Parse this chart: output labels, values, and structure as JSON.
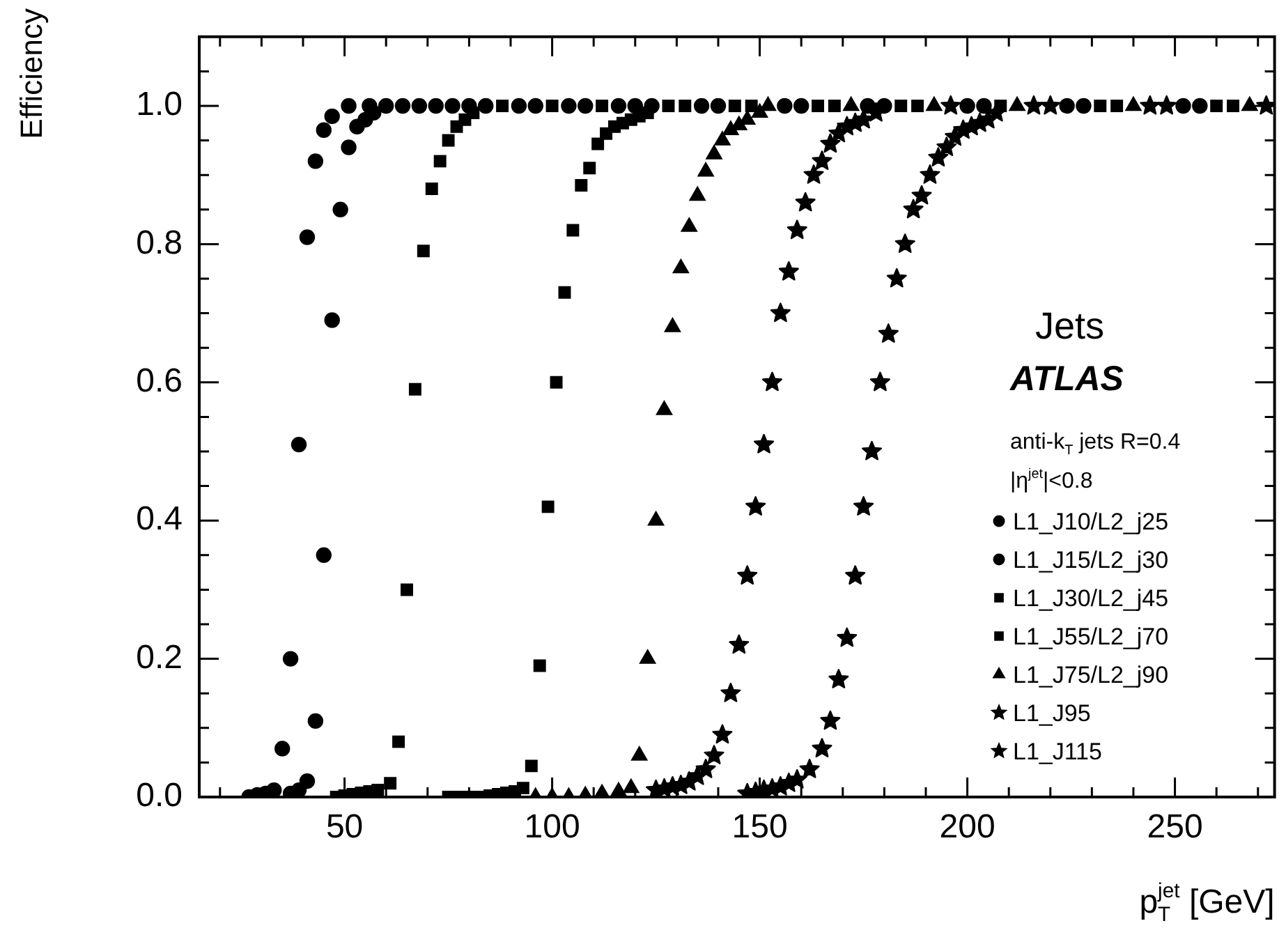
{
  "chart_data": {
    "type": "scatter",
    "xlabel": "p$_{T}$$^{jet}$ [GeV]",
    "ylabel": "Efficiency",
    "annotations": [
      "Jets",
      "ATLAS",
      "anti-k$_{T}$ jets R=0.4",
      "|η$^{jet}$|<0.8"
    ],
    "xlim": [
      15,
      274
    ],
    "ylim": [
      0,
      1.1
    ],
    "xticks": [
      {
        "value": 20,
        "label": null
      },
      {
        "value": 30,
        "label": null
      },
      {
        "value": 40,
        "label": null
      },
      50,
      {
        "value": 60,
        "label": null
      },
      {
        "value": 70,
        "label": null
      },
      {
        "value": 80,
        "label": null
      },
      {
        "value": 90,
        "label": null
      },
      100,
      {
        "value": 110,
        "label": null
      },
      {
        "value": 120,
        "label": null
      },
      {
        "value": 130,
        "label": null
      },
      {
        "value": 140,
        "label": null
      },
      150,
      {
        "value": 160,
        "label": null
      },
      {
        "value": 170,
        "label": null
      },
      {
        "value": 180,
        "label": null
      },
      {
        "value": 190,
        "label": null
      },
      200,
      {
        "value": 210,
        "label": null
      },
      {
        "value": 220,
        "label": null
      },
      {
        "value": 230,
        "label": null
      },
      {
        "value": 240,
        "label": null
      },
      250,
      {
        "value": 260,
        "label": null
      },
      {
        "value": 270,
        "label": null
      }
    ],
    "yticks": [
      {
        "value": 0,
        "label": "0.0"
      },
      {
        "value": 0.05,
        "label": null
      },
      {
        "value": 0.1,
        "label": null
      },
      {
        "value": 0.15,
        "label": null
      },
      {
        "value": 0.2,
        "label": "0.2"
      },
      {
        "value": 0.25,
        "label": null
      },
      {
        "value": 0.3,
        "label": null
      },
      {
        "value": 0.35,
        "label": null
      },
      {
        "value": 0.4,
        "label": "0.4"
      },
      {
        "value": 0.45,
        "label": null
      },
      {
        "value": 0.5,
        "label": null
      },
      {
        "value": 0.55,
        "label": null
      },
      {
        "value": 0.6,
        "label": "0.6"
      },
      {
        "value": 0.65,
        "label": null
      },
      {
        "value": 0.7,
        "label": null
      },
      {
        "value": 0.75,
        "label": null
      },
      {
        "value": 0.8,
        "label": "0.8"
      },
      {
        "value": 0.85,
        "label": null
      },
      {
        "value": 0.9,
        "label": null
      },
      {
        "value": 0.95,
        "label": null
      },
      {
        "value": 1,
        "label": "1.0"
      },
      {
        "value": 1.05,
        "label": null
      }
    ],
    "legend": "right",
    "series": [
      {
        "name": "L1_J10/L2_j25",
        "color": "#000000",
        "marker": "circle",
        "x": [
          27,
          29,
          31,
          33,
          35,
          37,
          39,
          41,
          43,
          45,
          47,
          51,
          56,
          64,
          72,
          80,
          92,
          104,
          116,
          136,
          156,
          176,
          200,
          224,
          252
        ],
        "values": [
          0,
          0.003,
          0.005,
          0.01,
          0.07,
          0.2,
          0.51,
          0.81,
          0.92,
          0.965,
          0.985,
          1,
          1,
          1,
          1,
          1,
          1,
          1,
          1,
          1,
          1,
          1,
          1,
          1,
          1
        ]
      },
      {
        "name": "L1_J15/L2_j30",
        "color": "#000000",
        "marker": "circle",
        "x": [
          37,
          39,
          41,
          43,
          45,
          47,
          49,
          51,
          53,
          55,
          57,
          60,
          68,
          76,
          84,
          96,
          108,
          120,
          124,
          140,
          160,
          180,
          204,
          228,
          256
        ],
        "values": [
          0.005,
          0.01,
          0.023,
          0.11,
          0.35,
          0.69,
          0.85,
          0.94,
          0.97,
          0.98,
          0.99,
          1,
          1,
          1,
          1,
          1,
          1,
          1,
          1,
          1,
          1,
          1,
          1,
          1,
          1
        ]
      },
      {
        "name": "L1_J30/L2_j45",
        "color": "#000000",
        "marker": "square",
        "x": [
          48,
          50,
          52,
          54,
          56,
          58,
          61,
          63,
          65,
          67,
          69,
          71,
          73,
          75,
          77,
          79,
          81,
          88,
          100,
          112,
          128,
          144,
          164,
          184,
          208,
          232,
          260
        ],
        "values": [
          0,
          0.002,
          0.004,
          0.006,
          0.008,
          0.01,
          0.02,
          0.08,
          0.3,
          0.59,
          0.79,
          0.88,
          0.92,
          0.95,
          0.97,
          0.98,
          0.99,
          1,
          1,
          1,
          1,
          1,
          1,
          1,
          1,
          1,
          1
        ]
      },
      {
        "name": "L1_J55/L2_j70",
        "color": "#000000",
        "marker": "square",
        "x": [
          75,
          77,
          79,
          81,
          83,
          85,
          87,
          89,
          91,
          93,
          95,
          97,
          99,
          101,
          103,
          105,
          107,
          109,
          111,
          113,
          115,
          117,
          119,
          121,
          123,
          132,
          148,
          168,
          188,
          236,
          264
        ],
        "values": [
          0,
          0,
          0,
          0,
          0,
          0.002,
          0.004,
          0.006,
          0.008,
          0.013,
          0.045,
          0.19,
          0.42,
          0.6,
          0.73,
          0.82,
          0.885,
          0.91,
          0.945,
          0.96,
          0.97,
          0.975,
          0.98,
          0.985,
          0.99,
          1,
          1,
          1,
          1,
          1,
          1
        ]
      },
      {
        "name": "L1_J75/L2_j90",
        "color": "#000000",
        "marker": "triangle",
        "x": [
          96,
          100,
          104,
          108,
          112,
          116,
          119,
          121,
          123,
          125,
          127,
          129,
          131,
          133,
          135,
          137,
          139,
          141,
          143,
          145,
          147,
          150,
          152,
          172,
          192,
          212,
          240,
          268
        ],
        "values": [
          0,
          0,
          0,
          0.002,
          0.005,
          0.008,
          0.013,
          0.06,
          0.2,
          0.4,
          0.56,
          0.68,
          0.765,
          0.825,
          0.87,
          0.905,
          0.93,
          0.95,
          0.965,
          0.972,
          0.98,
          0.99,
          1,
          1,
          1,
          1,
          1,
          1
        ]
      },
      {
        "name": "L1_J95",
        "color": "#000000",
        "marker": "star",
        "x": [
          125,
          127,
          129,
          131,
          133,
          135,
          137,
          139,
          141,
          143,
          145,
          147,
          149,
          151,
          153,
          155,
          157,
          159,
          161,
          163,
          165,
          167,
          169,
          171,
          173,
          175,
          178,
          196,
          216,
          244,
          272
        ],
        "values": [
          0.01,
          0.012,
          0.015,
          0.017,
          0.022,
          0.03,
          0.04,
          0.06,
          0.09,
          0.15,
          0.22,
          0.32,
          0.42,
          0.51,
          0.6,
          0.7,
          0.76,
          0.82,
          0.86,
          0.9,
          0.92,
          0.945,
          0.96,
          0.97,
          0.975,
          0.98,
          0.99,
          1,
          1,
          1,
          1
        ]
      },
      {
        "name": "L1_J115",
        "color": "#000000",
        "marker": "star",
        "x": [
          147,
          149,
          151,
          153,
          155,
          157,
          159,
          162,
          165,
          167,
          169,
          171,
          173,
          175,
          177,
          179,
          181,
          183,
          185,
          187,
          189,
          191,
          193,
          195,
          197,
          199,
          201,
          203,
          205,
          207,
          220,
          248
        ],
        "values": [
          0.005,
          0.007,
          0.01,
          0.012,
          0.015,
          0.02,
          0.025,
          0.04,
          0.07,
          0.11,
          0.17,
          0.23,
          0.32,
          0.42,
          0.5,
          0.6,
          0.67,
          0.75,
          0.8,
          0.85,
          0.87,
          0.9,
          0.925,
          0.94,
          0.955,
          0.965,
          0.97,
          0.975,
          0.98,
          0.99,
          1,
          1
        ]
      }
    ]
  }
}
